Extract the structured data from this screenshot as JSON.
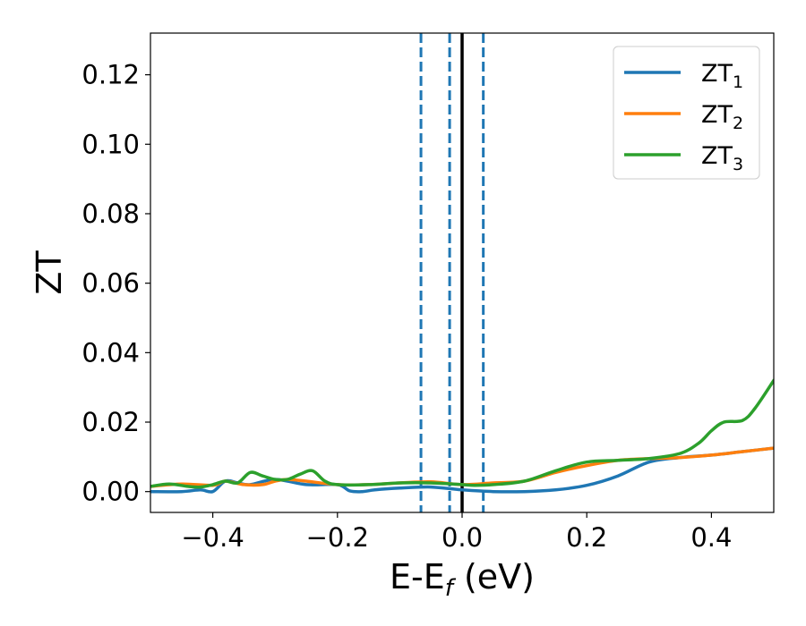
{
  "chart_data": {
    "type": "line",
    "title": "",
    "xlabel": "E-E",
    "xlabel_sub": "f",
    "xlabel_unit": " (eV)",
    "ylabel": "ZT",
    "xlim": [
      -0.5,
      0.5
    ],
    "ylim": [
      -0.006,
      0.132
    ],
    "grid": false,
    "legend_position": "top-right",
    "x_ticks": [
      -0.4,
      -0.2,
      0.0,
      0.2,
      0.4
    ],
    "x_tick_labels": [
      "−0.4",
      "−0.2",
      "0.0",
      "0.2",
      "0.4"
    ],
    "y_ticks": [
      0.0,
      0.02,
      0.04,
      0.06,
      0.08,
      0.1,
      0.12
    ],
    "y_tick_labels": [
      "0.00",
      "0.02",
      "0.04",
      "0.06",
      "0.08",
      "0.10",
      "0.12"
    ],
    "vertical_lines": [
      {
        "x": 0.0,
        "style": "solid",
        "color": "#000000"
      },
      {
        "x": -0.066,
        "style": "dashed",
        "color": "#1f77b4"
      },
      {
        "x": -0.02,
        "style": "dashed",
        "color": "#1f77b4"
      },
      {
        "x": 0.034,
        "style": "dashed",
        "color": "#1f77b4"
      }
    ],
    "series": [
      {
        "name": "ZT",
        "sub": "1",
        "color": "#1f77b4",
        "x": [
          -0.5,
          -0.45,
          -0.42,
          -0.4,
          -0.38,
          -0.36,
          -0.34,
          -0.3,
          -0.25,
          -0.2,
          -0.18,
          -0.16,
          -0.14,
          -0.1,
          -0.05,
          0.0,
          0.05,
          0.1,
          0.15,
          0.2,
          0.25,
          0.3,
          0.35,
          0.4,
          0.45,
          0.5
        ],
        "y": [
          0.0,
          0.0,
          0.0005,
          0.0,
          0.003,
          0.0025,
          0.002,
          0.0035,
          0.002,
          0.002,
          0.0002,
          0.0,
          0.0005,
          0.001,
          0.0013,
          0.0005,
          0.0,
          0.0,
          0.0005,
          0.0018,
          0.0045,
          0.0085,
          0.0098,
          0.0105,
          0.0115,
          0.0125
        ]
      },
      {
        "name": "ZT",
        "sub": "2",
        "color": "#ff7f0e",
        "x": [
          -0.5,
          -0.45,
          -0.4,
          -0.38,
          -0.35,
          -0.32,
          -0.3,
          -0.28,
          -0.25,
          -0.2,
          -0.15,
          -0.1,
          -0.05,
          0.0,
          0.05,
          0.1,
          0.15,
          0.2,
          0.25,
          0.3,
          0.35,
          0.4,
          0.45,
          0.5
        ],
        "y": [
          0.0015,
          0.0022,
          0.0018,
          0.003,
          0.002,
          0.002,
          0.003,
          0.0035,
          0.003,
          0.002,
          0.002,
          0.0025,
          0.0028,
          0.002,
          0.0025,
          0.003,
          0.0055,
          0.0075,
          0.009,
          0.0095,
          0.0098,
          0.0105,
          0.0115,
          0.0125
        ]
      },
      {
        "name": "ZT",
        "sub": "3",
        "color": "#2ca02c",
        "x": [
          -0.5,
          -0.47,
          -0.44,
          -0.42,
          -0.4,
          -0.38,
          -0.36,
          -0.34,
          -0.32,
          -0.3,
          -0.28,
          -0.26,
          -0.24,
          -0.22,
          -0.2,
          -0.15,
          -0.1,
          -0.05,
          0.0,
          0.02,
          0.05,
          0.1,
          0.15,
          0.2,
          0.25,
          0.3,
          0.35,
          0.38,
          0.4,
          0.42,
          0.45,
          0.47,
          0.5
        ],
        "y": [
          0.0015,
          0.0022,
          0.0015,
          0.0013,
          0.002,
          0.003,
          0.0025,
          0.0055,
          0.0045,
          0.0035,
          0.0035,
          0.005,
          0.006,
          0.003,
          0.002,
          0.002,
          0.0025,
          0.0025,
          0.002,
          0.0018,
          0.002,
          0.003,
          0.006,
          0.0085,
          0.009,
          0.0095,
          0.011,
          0.014,
          0.0175,
          0.02,
          0.0205,
          0.024,
          0.032
        ]
      }
    ]
  }
}
